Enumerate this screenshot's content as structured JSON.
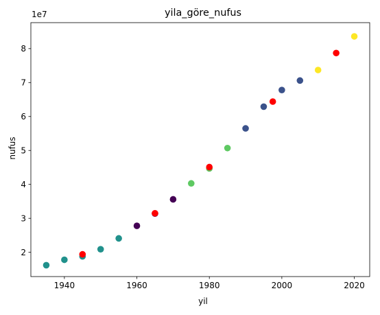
{
  "chart_data": {
    "type": "scatter",
    "title": "yila_göre_nufus",
    "xlabel": "yil",
    "ylabel": "nufus",
    "offset_text": "1e7",
    "xlim": [
      1930.75,
      2024.25
    ],
    "ylim": [
      12850000,
      87650000
    ],
    "x_ticks": [
      {
        "value": 1940,
        "label": "1940"
      },
      {
        "value": 1960,
        "label": "1960"
      },
      {
        "value": 1980,
        "label": "1980"
      },
      {
        "value": 2000,
        "label": "2000"
      },
      {
        "value": 2020,
        "label": "2020"
      }
    ],
    "y_ticks": [
      {
        "value": 20000000,
        "label": "2"
      },
      {
        "value": 30000000,
        "label": "3"
      },
      {
        "value": 40000000,
        "label": "4"
      },
      {
        "value": 50000000,
        "label": "5"
      },
      {
        "value": 60000000,
        "label": "6"
      },
      {
        "value": 70000000,
        "label": "7"
      },
      {
        "value": 80000000,
        "label": "8"
      }
    ],
    "grid": false,
    "legend": "none",
    "series": [
      {
        "points": [
          {
            "x": 1935,
            "y": 16200000,
            "color": "#21918c"
          },
          {
            "x": 1940,
            "y": 17800000,
            "color": "#21918c"
          },
          {
            "x": 1945,
            "y": 18800000,
            "color": "#21918c"
          },
          {
            "x": 1950,
            "y": 20900000,
            "color": "#21918c"
          },
          {
            "x": 1955,
            "y": 24100000,
            "color": "#21918c"
          },
          {
            "x": 1960,
            "y": 27800000,
            "color": "#440154"
          },
          {
            "x": 1965,
            "y": 31400000,
            "color": "#440154"
          },
          {
            "x": 1970,
            "y": 35600000,
            "color": "#440154"
          },
          {
            "x": 1975,
            "y": 40300000,
            "color": "#5ec962"
          },
          {
            "x": 1980,
            "y": 44700000,
            "color": "#5ec962"
          },
          {
            "x": 1985,
            "y": 50700000,
            "color": "#5ec962"
          },
          {
            "x": 1990,
            "y": 56500000,
            "color": "#3b528b"
          },
          {
            "x": 1995,
            "y": 62900000,
            "color": "#3b528b"
          },
          {
            "x": 2000,
            "y": 67800000,
            "color": "#3b528b"
          },
          {
            "x": 2005,
            "y": 70600000,
            "color": "#3b528b"
          },
          {
            "x": 2010,
            "y": 73700000,
            "color": "#fde725"
          },
          {
            "x": 2020,
            "y": 83600000,
            "color": "#fde725"
          }
        ]
      },
      {
        "points": [
          {
            "x": 1945,
            "y": 19400000,
            "color": "#ff0000"
          },
          {
            "x": 1965,
            "y": 31500000,
            "color": "#ff0000"
          },
          {
            "x": 1980,
            "y": 45100000,
            "color": "#ff0000"
          },
          {
            "x": 1997.5,
            "y": 64400000,
            "color": "#ff0000"
          },
          {
            "x": 2015,
            "y": 78700000,
            "color": "#ff0000"
          }
        ]
      }
    ]
  }
}
